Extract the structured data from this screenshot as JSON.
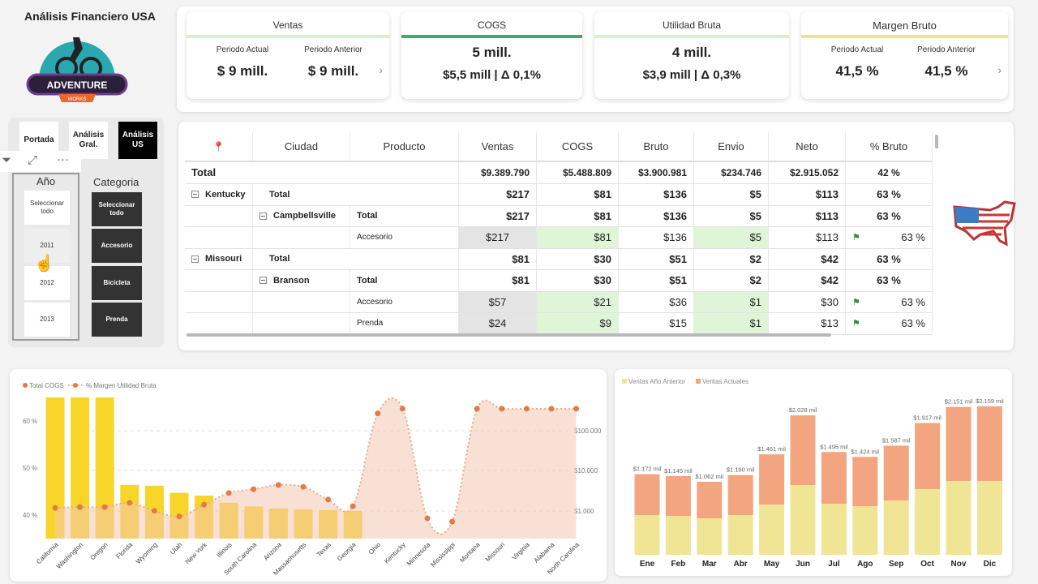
{
  "header": {
    "title": "Análisis Financiero USA",
    "logo_text": "Adventure",
    "logo_sub": "Works"
  },
  "kpis": {
    "ventas": {
      "title": "Ventas",
      "actual_label": "Periodo Actual",
      "actual": "$ 9 mill.",
      "prev_label": "Periodo Anterior",
      "prev": "$ 9 mill.",
      "accent": "#d8f0cf"
    },
    "cogs": {
      "title": "COGS",
      "value": "5 mill.",
      "detail": "$5,5 mill | Δ 0,1%",
      "accent": "#3aae68"
    },
    "utilidad": {
      "title": "Utilidad Bruta",
      "value": "4 mill.",
      "detail": "$3,9 mill | Δ 0,3%",
      "accent": "#d8f0cf"
    },
    "margen": {
      "title": "Margen Bruto",
      "actual_label": "Periodo Actual",
      "actual": "41,5 %",
      "prev_label": "Periodo Anterior",
      "prev": "41,5 %",
      "accent": "#f0e28a"
    }
  },
  "nav": {
    "portada": "Portada",
    "gral": "Análisis Gral.",
    "us": "Análisis US"
  },
  "slicers": {
    "year": {
      "title": "Año",
      "items": [
        "Seleccionar todo",
        "2011",
        "2012",
        "2013"
      ],
      "hovered": "2011"
    },
    "category": {
      "title": "Categoria",
      "items": [
        "Seleccionar todo",
        "Accesorio",
        "Bicicleta",
        "Prenda"
      ]
    }
  },
  "table": {
    "headers": [
      "Ciudad",
      "Producto",
      "Ventas",
      "COGS",
      "Bruto",
      "Envio",
      "Neto",
      "% Bruto"
    ],
    "total": {
      "label": "Total",
      "values": [
        "$9.389.790",
        "$5.488.809",
        "$3.900.981",
        "$234.746",
        "$2.915.052",
        "42 %"
      ]
    },
    "rows": [
      {
        "type": "state",
        "state": "Kentucky",
        "label": "Total",
        "values": [
          "$217",
          "$81",
          "$136",
          "$5",
          "$113",
          "63 %"
        ]
      },
      {
        "type": "city",
        "city": "Campbellsville",
        "label": "Total",
        "values": [
          "$217",
          "$81",
          "$136",
          "$5",
          "$113",
          "63 %"
        ]
      },
      {
        "type": "detail",
        "label": "Accesorio",
        "values": [
          "$217",
          "$81",
          "$136",
          "$5",
          "$113",
          "63 %"
        ]
      },
      {
        "type": "state",
        "state": "Missouri",
        "label": "Total",
        "values": [
          "$81",
          "$30",
          "$51",
          "$2",
          "$42",
          "63 %"
        ]
      },
      {
        "type": "city",
        "city": "Branson",
        "label": "Total",
        "values": [
          "$81",
          "$30",
          "$51",
          "$2",
          "$42",
          "63 %"
        ]
      },
      {
        "type": "detail",
        "label": "Accesorio",
        "values": [
          "$57",
          "$21",
          "$36",
          "$1",
          "$30",
          "63 %"
        ]
      },
      {
        "type": "detail",
        "label": "Prenda",
        "values": [
          "$24",
          "$9",
          "$15",
          "$1",
          "$13",
          "63 %"
        ]
      }
    ]
  },
  "chart_data": [
    {
      "type": "bar+area",
      "legend": [
        "Total COGS",
        "% Margen Utilidad Bruta"
      ],
      "categories": [
        "California",
        "Washington",
        "Oregon",
        "Florida",
        "Wyoming",
        "Utah",
        "New York",
        "Illinois",
        "South Carolina",
        "Arizona",
        "Massachusetts",
        "Texas",
        "Georgia",
        "Ohio",
        "Kentucky",
        "Minnesota",
        "Mississippi",
        "Montana",
        "Missouri",
        "Virginia",
        "Alabama",
        "North Carolina"
      ],
      "series": [
        {
          "name": "Total COGS",
          "axis": "right",
          "scale": "log",
          "values": [
            660000,
            650000,
            640000,
            4400,
            4200,
            2800,
            2400,
            1600,
            1300,
            1150,
            1100,
            1050,
            1000,
            null,
            null,
            null,
            null,
            null,
            null,
            null,
            null,
            null
          ]
        },
        {
          "name": "% Margen Utilidad Bruta",
          "axis": "left",
          "values": [
            41.5,
            41.7,
            41.7,
            42.6,
            40.9,
            39.7,
            42.2,
            44.7,
            45.5,
            46.4,
            46.0,
            43.3,
            41.9,
            61.6,
            62.6,
            39.3,
            38.6,
            62.6,
            62.6,
            62.6,
            62.6,
            62.6
          ]
        }
      ],
      "left_ticks": [
        "60 %",
        "50 %",
        "40 %"
      ],
      "right_ticks": [
        "$100.000",
        "$10.000",
        "$1.000"
      ],
      "colors": {
        "bar": "#f7d629",
        "area": "#f4c7b0",
        "dot": "#e07b4a"
      }
    },
    {
      "type": "stacked-bar",
      "legend": [
        "Ventas Año Anterior",
        "Ventas Actuales"
      ],
      "categories": [
        "Ene",
        "Feb",
        "Mar",
        "Abr",
        "May",
        "Jun",
        "Jul",
        "Ago",
        "Sep",
        "Oct",
        "Nov",
        "Dic"
      ],
      "series": [
        {
          "name": "Ventas Año Anterior",
          "values": [
            578,
            566,
            531,
            578,
            731,
            1015,
            743,
            708,
            790,
            956,
            1074,
            1074
          ]
        },
        {
          "name": "Ventas Actuales",
          "values": [
            594,
            579,
            531,
            582,
            730,
            1013,
            752,
            716,
            797,
            961,
            1077,
            1085
          ]
        }
      ],
      "labels": [
        "$1.172 mil",
        "$1.145 mil",
        "$1.062 mil",
        "$1.160 mil",
        "$1.461 mil",
        "$2.028 mil",
        "$1.495 mil",
        "$1.424 mil",
        "$1.587 mil",
        "$1.917 mil",
        "$2.151 mil",
        "$2.159 mil"
      ],
      "colors": {
        "prev": "#f0e594",
        "actual": "#f2a57e"
      }
    }
  ]
}
